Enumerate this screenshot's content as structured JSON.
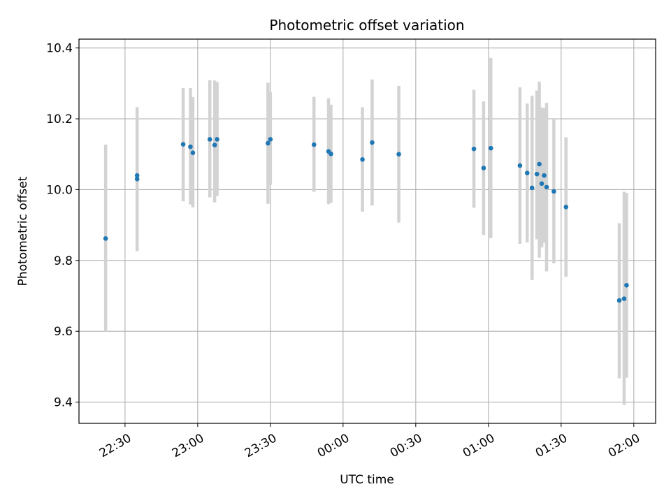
{
  "chart_data": {
    "type": "scatter",
    "title": "Photometric offset variation",
    "xlabel": "UTC time",
    "ylabel": "Photometric offset",
    "x_unit": "UTC time",
    "xlim": [
      "22:11",
      "02:09"
    ],
    "ylim": [
      9.34,
      10.425
    ],
    "x_ticks": [
      "22:30",
      "23:00",
      "23:30",
      "00:00",
      "00:30",
      "01:00",
      "01:30",
      "02:00"
    ],
    "y_ticks": [
      9.4,
      9.6,
      9.8,
      10.0,
      10.2,
      10.4
    ],
    "grid": true,
    "colors": {
      "points": "#1f77b4",
      "error_bars": "#d3d3d3",
      "grid": "#b0b0b0"
    },
    "points": [
      {
        "x": "22:22",
        "y": 9.862,
        "lo": 9.6,
        "hi": 10.127
      },
      {
        "x": "22:35",
        "y": 10.03,
        "lo": 9.826,
        "hi": 10.233
      },
      {
        "x": "22:35",
        "y": 10.04,
        "lo": 9.863,
        "hi": 10.221
      },
      {
        "x": "22:54",
        "y": 10.128,
        "lo": 9.967,
        "hi": 10.287
      },
      {
        "x": "22:57",
        "y": 10.121,
        "lo": 9.958,
        "hi": 10.287
      },
      {
        "x": "22:58",
        "y": 10.104,
        "lo": 9.95,
        "hi": 10.261
      },
      {
        "x": "23:05",
        "y": 10.142,
        "lo": 9.978,
        "hi": 10.309
      },
      {
        "x": "23:07",
        "y": 10.126,
        "lo": 9.964,
        "hi": 10.308
      },
      {
        "x": "23:08",
        "y": 10.142,
        "lo": 9.982,
        "hi": 10.304
      },
      {
        "x": "23:29",
        "y": 10.131,
        "lo": 9.96,
        "hi": 10.302
      },
      {
        "x": "23:30",
        "y": 10.142,
        "lo": 10.013,
        "hi": 10.275
      },
      {
        "x": "23:48",
        "y": 10.127,
        "lo": 9.994,
        "hi": 10.262
      },
      {
        "x": "23:54",
        "y": 10.108,
        "lo": 9.959,
        "hi": 10.258
      },
      {
        "x": "23:55",
        "y": 10.101,
        "lo": 9.963,
        "hi": 10.24
      },
      {
        "x": "00:08",
        "y": 10.085,
        "lo": 9.938,
        "hi": 10.233
      },
      {
        "x": "00:12",
        "y": 10.133,
        "lo": 9.955,
        "hi": 10.311
      },
      {
        "x": "00:23",
        "y": 10.1,
        "lo": 9.907,
        "hi": 10.293
      },
      {
        "x": "00:54",
        "y": 10.115,
        "lo": 9.949,
        "hi": 10.282
      },
      {
        "x": "00:58",
        "y": 10.061,
        "lo": 9.872,
        "hi": 10.249
      },
      {
        "x": "01:01",
        "y": 10.117,
        "lo": 9.863,
        "hi": 10.372
      },
      {
        "x": "01:13",
        "y": 10.068,
        "lo": 9.847,
        "hi": 10.289
      },
      {
        "x": "01:16",
        "y": 10.047,
        "lo": 9.851,
        "hi": 10.243
      },
      {
        "x": "01:18",
        "y": 10.005,
        "lo": 9.745,
        "hi": 10.265
      },
      {
        "x": "01:20",
        "y": 10.044,
        "lo": 9.86,
        "hi": 10.28
      },
      {
        "x": "01:21",
        "y": 10.072,
        "lo": 9.808,
        "hi": 10.305
      },
      {
        "x": "01:22",
        "y": 10.017,
        "lo": 9.837,
        "hi": 10.232
      },
      {
        "x": "01:23",
        "y": 10.04,
        "lo": 9.85,
        "hi": 10.23
      },
      {
        "x": "01:24",
        "y": 10.007,
        "lo": 9.769,
        "hi": 10.245
      },
      {
        "x": "01:27",
        "y": 9.995,
        "lo": 9.792,
        "hi": 10.198
      },
      {
        "x": "01:32",
        "y": 9.951,
        "lo": 9.754,
        "hi": 10.148
      },
      {
        "x": "01:54",
        "y": 9.687,
        "lo": 9.467,
        "hi": 9.905
      },
      {
        "x": "01:56",
        "y": 9.692,
        "lo": 9.392,
        "hi": 9.994
      },
      {
        "x": "01:57",
        "y": 9.73,
        "lo": 9.469,
        "hi": 9.991
      }
    ]
  }
}
